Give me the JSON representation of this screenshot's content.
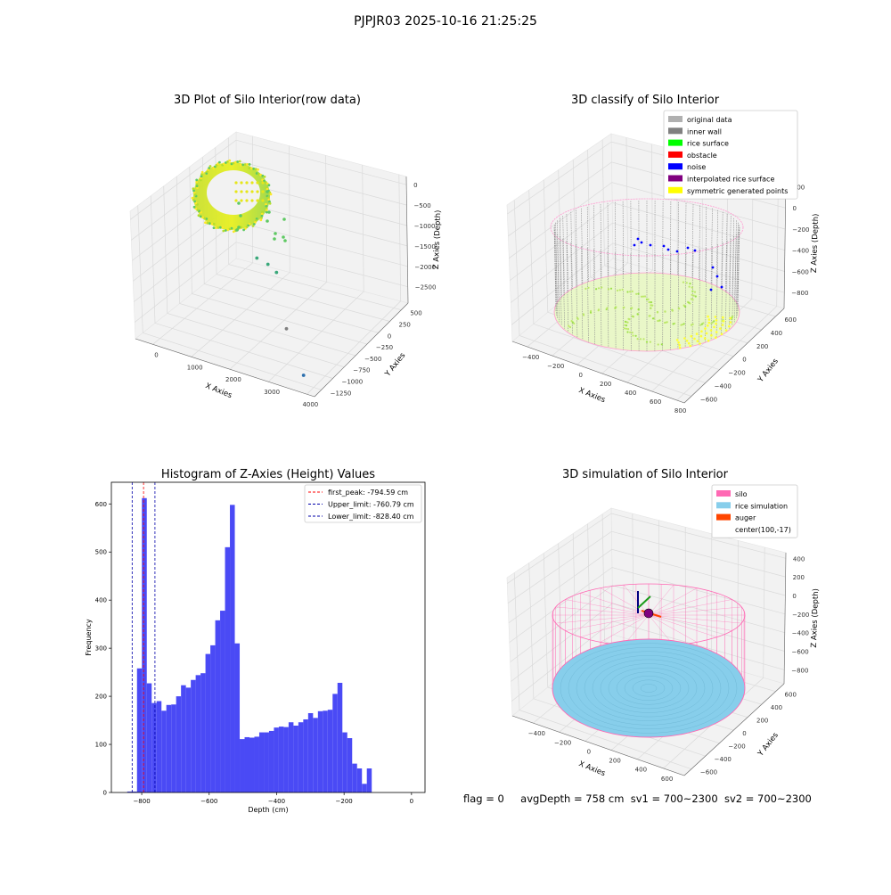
{
  "figure": {
    "title": "PJPJR03 2025-10-16 21:25:25",
    "footer": {
      "flag": "flag = 0",
      "avg_depth": "avgDepth = 758 cm",
      "sv1": "sv1 = 700~2300",
      "sv2": "sv2 = 700~2300"
    }
  },
  "chart_data": [
    {
      "type": "scatter",
      "projection": "3d",
      "title": "3D Plot of Silo Interior(row data)",
      "xlabel": "X Axies",
      "ylabel": "Y Axies",
      "zlabel": "Z Axies (Depth)",
      "x_ticks": [
        0,
        1000,
        2000,
        3000,
        4000
      ],
      "y_ticks": [
        -1250,
        -1000,
        -750,
        -500,
        -250,
        0,
        250,
        500
      ],
      "z_ticks": [
        -2500,
        -2000,
        -1500,
        -1000,
        -500,
        0
      ],
      "xlim": [
        -500,
        4200
      ],
      "ylim": [
        -1400,
        650
      ],
      "zlim": [
        -2900,
        200
      ],
      "colormap": "viridis",
      "outlier_points": [
        {
          "x": 1500,
          "y": -400,
          "z": -1300
        },
        {
          "x": 1650,
          "y": -300,
          "z": -1500
        },
        {
          "x": 1800,
          "y": -250,
          "z": -1700
        },
        {
          "x": 2600,
          "y": -700,
          "z": -2400
        },
        {
          "x": 3600,
          "y": -1150,
          "z": -2800
        }
      ]
    },
    {
      "type": "scatter",
      "projection": "3d",
      "title": "3D classify of Silo Interior",
      "xlabel": "X Axies",
      "ylabel": "Y Axies",
      "zlabel": "Z Axies (Depth)",
      "x_ticks": [
        -400,
        -200,
        0,
        200,
        400,
        600,
        800
      ],
      "y_ticks": [
        -600,
        -400,
        -200,
        0,
        200,
        400,
        600
      ],
      "z_ticks": [
        -800,
        -600,
        -400,
        -200,
        0,
        200
      ],
      "legend_position": "upper-right",
      "legend": [
        {
          "label": "original data",
          "color": "#b0b0b0"
        },
        {
          "label": "inner wall",
          "color": "#808080"
        },
        {
          "label": "rice surface",
          "color": "#00ff00"
        },
        {
          "label": "obstacle",
          "color": "#ff0000"
        },
        {
          "label": "noise",
          "color": "#0000ff"
        },
        {
          "label": "interpolated rice surface",
          "color": "#800080"
        },
        {
          "label": "symmetric generated points",
          "color": "#ffff00"
        }
      ]
    },
    {
      "type": "bar",
      "title": "Histogram of Z-Axies (Height) Values",
      "xlabel": "Depth (cm)",
      "ylabel": "Frequency",
      "x_ticks": [
        -800,
        -600,
        -400,
        -200,
        0
      ],
      "y_ticks": [
        0,
        100,
        200,
        300,
        400,
        500,
        600
      ],
      "xlim": [
        -890,
        40
      ],
      "ylim": [
        0,
        645
      ],
      "bin_start": -843,
      "bin_width": 14.5,
      "values": [
        2,
        2,
        258,
        612,
        227,
        186,
        190,
        170,
        182,
        183,
        200,
        223,
        218,
        234,
        244,
        248,
        288,
        306,
        358,
        378,
        510,
        598,
        310,
        111,
        115,
        114,
        116,
        125,
        125,
        128,
        135,
        137,
        136,
        146,
        139,
        146,
        152,
        165,
        155,
        169,
        170,
        172,
        205,
        228,
        125,
        113,
        60,
        50,
        18,
        50
      ],
      "bar_color": "#4a4af5",
      "legend_position": "upper-right",
      "lines": [
        {
          "label": "first_peak: -794.59 cm",
          "x": -794.59,
          "color": "#ff0000"
        },
        {
          "label": "Upper_limit: -760.79 cm",
          "x": -760.79,
          "color": "#0000aa"
        },
        {
          "label": "Lower_limit: -828.40 cm",
          "x": -828.4,
          "color": "#0000aa"
        }
      ]
    },
    {
      "type": "surface",
      "projection": "3d",
      "title": "3D simulation of Silo Interior",
      "xlabel": "X Axies",
      "ylabel": "Y Axies",
      "zlabel": "Z Axies (Depth)",
      "x_ticks": [
        -400,
        -200,
        0,
        200,
        400,
        600
      ],
      "y_ticks": [
        -600,
        -400,
        -200,
        0,
        200,
        400,
        600
      ],
      "z_ticks": [
        -800,
        -600,
        -400,
        -200,
        0,
        200,
        400
      ],
      "legend_position": "upper-right",
      "legend": [
        {
          "label": "silo",
          "color": "#ff69b4"
        },
        {
          "label": "rice simulation",
          "color": "#87ceeb"
        },
        {
          "label": "auger",
          "color": "#ff4500"
        },
        {
          "label": "center(100,-17)",
          "color": ""
        }
      ]
    }
  ]
}
